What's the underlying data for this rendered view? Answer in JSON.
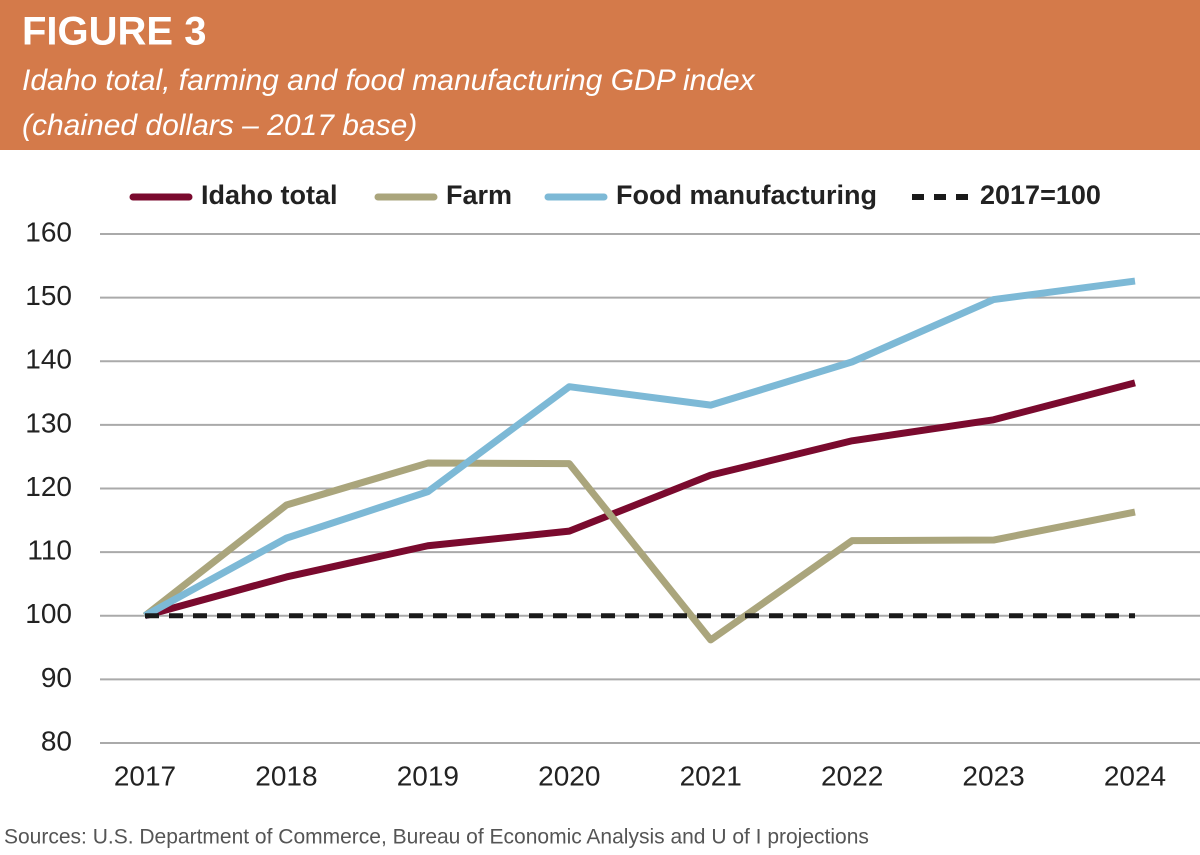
{
  "chart_data": {
    "type": "line",
    "title": "FIGURE 3",
    "subtitle": [
      "Idaho total, farming and food manufacturing GDP index",
      "(chained dollars – 2017 base)"
    ],
    "source": "Sources: U.S. Department of Commerce, Bureau of Economic Analysis and U of I projections",
    "categories": [
      "2017",
      "2018",
      "2019",
      "2020",
      "2021",
      "2022",
      "2023",
      "2024"
    ],
    "series": [
      {
        "name": "Idaho total",
        "color": "#7a0a2e",
        "values": [
          100,
          106.1,
          111.0,
          113.3,
          122.1,
          127.5,
          130.8,
          136.6
        ]
      },
      {
        "name": "Farm",
        "color": "#aaa57c",
        "values": [
          100,
          117.4,
          124.0,
          123.9,
          96.2,
          111.8,
          111.9,
          116.3
        ]
      },
      {
        "name": "Food manufacturing",
        "color": "#7db9d6",
        "values": [
          100,
          112.2,
          119.5,
          136.0,
          133.1,
          139.9,
          149.7,
          152.6
        ]
      },
      {
        "name": "2017=100",
        "color": "#1a1a1a",
        "dashed": true,
        "values": [
          100,
          100,
          100,
          100,
          100,
          100,
          100,
          100
        ]
      }
    ],
    "ylim": [
      80,
      160
    ],
    "yticks": [
      80,
      90,
      100,
      110,
      120,
      130,
      140,
      150,
      160
    ],
    "grid": true,
    "legend": "top"
  }
}
